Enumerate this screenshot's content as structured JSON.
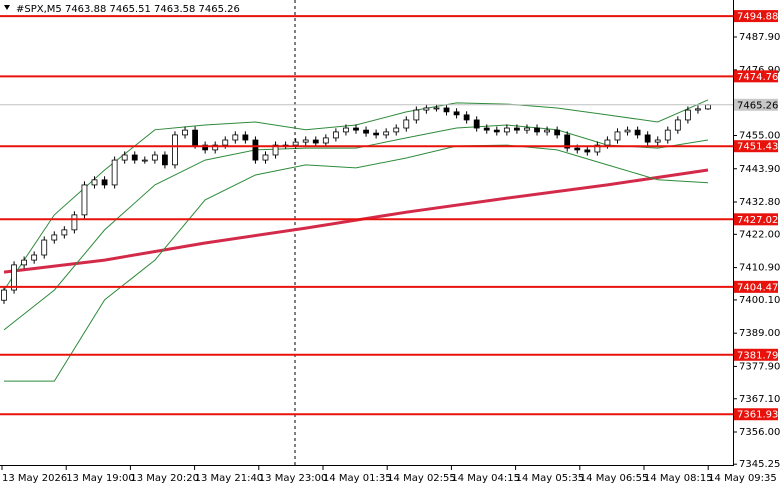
{
  "chart_data": {
    "type": "candlestick",
    "title": "#SPX,M5  7463.88 7465.51 7463.58 7465.26",
    "time_labels": [
      "13 May 2026",
      "13 May 19:00",
      "13 May 20:20",
      "13 May 21:40",
      "13 May 23:00",
      "14 May 01:35",
      "14 May 02:55",
      "14 May 04:15",
      "14 May 05:35",
      "14 May 06:55",
      "14 May 08:15",
      "14 May 09:35"
    ],
    "ylim": [
      7345.25,
      7500.25
    ],
    "yticks": [
      {
        "value": 7487.9,
        "label": "7487.90"
      },
      {
        "value": 7476.9,
        "label": "7476.90"
      },
      {
        "value": 7455,
        "label": "7455.00"
      },
      {
        "value": 7443.9,
        "label": "7443.90"
      },
      {
        "value": 7432.8,
        "label": "7432.80"
      },
      {
        "value": 7422,
        "label": "7422.00"
      },
      {
        "value": 7410.9,
        "label": "7410.90"
      },
      {
        "value": 7400.1,
        "label": "7400.10"
      },
      {
        "value": 7389,
        "label": "7389.00"
      },
      {
        "value": 7377.9,
        "label": "7377.90"
      },
      {
        "value": 7367.1,
        "label": "7367.10"
      },
      {
        "value": 7356,
        "label": "7356.00"
      },
      7345.25
    ],
    "levels": {
      "color": "#e8120c",
      "values": [
        7494.88,
        7474.76,
        7451.43,
        7427.02,
        7404.47,
        7381.79,
        7361.93
      ]
    },
    "current_price": 7465.26,
    "candles": [
      [
        7400.0,
        7404.6,
        7398.8,
        7403.4
      ],
      [
        7403.4,
        7413.0,
        7402.2,
        7411.8
      ],
      [
        7411.8,
        7414.6,
        7410.6,
        7413.4
      ],
      [
        7413.4,
        7416.3,
        7412.2,
        7415.1
      ],
      [
        7415.1,
        7421.3,
        7413.9,
        7420.1
      ],
      [
        7420.1,
        7423.0,
        7418.9,
        7421.8
      ],
      [
        7421.8,
        7424.7,
        7420.6,
        7423.5
      ],
      [
        7423.5,
        7429.7,
        7422.3,
        7428.5
      ],
      [
        7428.5,
        7439.7,
        7427.3,
        7438.5
      ],
      [
        7438.5,
        7441.4,
        7437.3,
        7440.2
      ],
      [
        7440.2,
        7441.4,
        7437.3,
        7438.5
      ],
      [
        7438.5,
        7448.0,
        7437.3,
        7446.8
      ],
      [
        7446.8,
        7449.7,
        7445.6,
        7448.5
      ],
      [
        7448.5,
        7449.7,
        7445.6,
        7446.8
      ],
      [
        7446.8,
        7448.0,
        7445.6,
        7446.8
      ],
      [
        7446.8,
        7449.7,
        7445.6,
        7448.5
      ],
      [
        7448.5,
        7449.7,
        7444.0,
        7445.2
      ],
      [
        7445.2,
        7456.4,
        7444.0,
        7455.2
      ],
      [
        7455.2,
        7458.0,
        7454.0,
        7456.8
      ],
      [
        7456.8,
        7458.0,
        7450.6,
        7451.8
      ],
      [
        7451.8,
        7453.0,
        7449.0,
        7450.2
      ],
      [
        7450.2,
        7453.0,
        7449.0,
        7451.8
      ],
      [
        7451.8,
        7454.7,
        7450.6,
        7453.5
      ],
      [
        7453.5,
        7456.4,
        7452.3,
        7455.2
      ],
      [
        7455.2,
        7456.4,
        7452.3,
        7453.5
      ],
      [
        7453.5,
        7454.7,
        7445.6,
        7446.8
      ],
      [
        7446.8,
        7449.7,
        7445.6,
        7448.5
      ],
      [
        7448.5,
        7453.0,
        7447.3,
        7451.8
      ],
      [
        7451.8,
        7453.0,
        7450.6,
        7451.8
      ],
      [
        7451.8,
        7454.0,
        7450.6,
        7452.8
      ],
      [
        7452.8,
        7454.7,
        7451.6,
        7453.5
      ],
      [
        7453.5,
        7454.7,
        7451.3,
        7452.5
      ],
      [
        7452.5,
        7455.4,
        7451.3,
        7454.2
      ],
      [
        7454.2,
        7457.4,
        7453.0,
        7456.2
      ],
      [
        7456.2,
        7458.7,
        7455.0,
        7457.5
      ],
      [
        7457.5,
        7458.7,
        7455.6,
        7456.8
      ],
      [
        7456.8,
        7458.0,
        7454.6,
        7455.8
      ],
      [
        7455.8,
        7457.0,
        7454.0,
        7455.2
      ],
      [
        7455.2,
        7457.4,
        7454.0,
        7456.2
      ],
      [
        7456.2,
        7458.7,
        7455.0,
        7457.5
      ],
      [
        7457.5,
        7461.4,
        7456.3,
        7460.2
      ],
      [
        7460.2,
        7464.7,
        7459.0,
        7463.5
      ],
      [
        7463.5,
        7465.4,
        7462.3,
        7464.2
      ],
      [
        7464.2,
        7465.4,
        7463.0,
        7464.2
      ],
      [
        7464.2,
        7465.4,
        7461.7,
        7462.9
      ],
      [
        7462.9,
        7464.1,
        7460.7,
        7461.9
      ],
      [
        7461.9,
        7463.1,
        7459.0,
        7460.2
      ],
      [
        7460.2,
        7461.4,
        7456.3,
        7457.5
      ],
      [
        7457.5,
        7458.7,
        7455.6,
        7456.8
      ],
      [
        7456.8,
        7458.0,
        7455.0,
        7456.2
      ],
      [
        7456.2,
        7458.7,
        7455.0,
        7457.5
      ],
      [
        7457.5,
        7458.7,
        7455.6,
        7456.8
      ],
      [
        7456.8,
        7458.7,
        7455.6,
        7457.5
      ],
      [
        7457.5,
        7458.7,
        7455.0,
        7456.2
      ],
      [
        7456.2,
        7458.0,
        7455.0,
        7456.8
      ],
      [
        7456.8,
        7458.0,
        7454.0,
        7455.2
      ],
      [
        7455.2,
        7456.4,
        7449.6,
        7450.8
      ],
      [
        7450.8,
        7452.0,
        7449.0,
        7450.2
      ],
      [
        7450.2,
        7451.4,
        7448.3,
        7449.5
      ],
      [
        7449.5,
        7453.0,
        7448.3,
        7451.8
      ],
      [
        7451.8,
        7454.7,
        7450.6,
        7453.5
      ],
      [
        7453.5,
        7457.4,
        7452.3,
        7456.2
      ],
      [
        7456.2,
        7458.0,
        7455.0,
        7456.8
      ],
      [
        7456.8,
        7458.0,
        7454.0,
        7455.2
      ],
      [
        7455.2,
        7456.4,
        7451.6,
        7452.8
      ],
      [
        7452.8,
        7454.7,
        7451.6,
        7453.5
      ],
      [
        7453.5,
        7458.0,
        7452.3,
        7456.8
      ],
      [
        7456.8,
        7461.4,
        7455.6,
        7460.2
      ],
      [
        7460.2,
        7464.7,
        7459.0,
        7463.5
      ],
      [
        7463.5,
        7465.1,
        7462.3,
        7463.9
      ],
      [
        7463.88,
        7465.51,
        7463.58,
        7465.26
      ]
    ],
    "lines": [
      {
        "color": "#d42a4a",
        "values": [
          7409.4,
          7413.4,
          7419.1,
          7424.1,
          7429.4,
          7434.1,
          7438.5,
          7443.5
        ]
      },
      {
        "color": "#2e8b3a",
        "values": [
          7403.4,
          7428.5,
          7443.5,
          7456.9,
          7458.5,
          7459.5,
          7456.9,
          7458.5,
          7462.9,
          7465.9,
          7465.5,
          7464.2,
          7461.9,
          7459.5,
          7466.9
        ]
      },
      {
        "color": "#2e8b3a",
        "values": [
          7390.1,
          7403.4,
          7423.5,
          7438.5,
          7446.8,
          7450.2,
          7450.8,
          7450.8,
          7454.2,
          7457.5,
          7458.5,
          7456.9,
          7451.8,
          7450.8,
          7453.5
        ]
      },
      {
        "color": "#2e8b3a",
        "values": [
          7373.0,
          7373.0,
          7400.1,
          7413.4,
          7433.5,
          7441.8,
          7445.2,
          7444.2,
          7447.5,
          7451.5,
          7451.8,
          7450.2,
          7445.2,
          7440.2,
          7439.2
        ]
      }
    ]
  }
}
